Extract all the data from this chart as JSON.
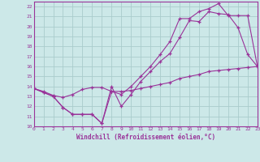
{
  "xlabel": "Windchill (Refroidissement éolien,°C)",
  "xlim": [
    0,
    23
  ],
  "ylim": [
    10,
    22.5
  ],
  "yticks": [
    10,
    11,
    12,
    13,
    14,
    15,
    16,
    17,
    18,
    19,
    20,
    21,
    22
  ],
  "xticks": [
    0,
    1,
    2,
    3,
    4,
    5,
    6,
    7,
    8,
    9,
    10,
    11,
    12,
    13,
    14,
    15,
    16,
    17,
    18,
    19,
    20,
    21,
    22,
    23
  ],
  "bg_color": "#cce8e8",
  "grid_color": "#aacccc",
  "line_color": "#993399",
  "line1_x": [
    0,
    1,
    2,
    3,
    4,
    5,
    6,
    7,
    8,
    9,
    10,
    11,
    12,
    13,
    14,
    15,
    16,
    17,
    18,
    19,
    20,
    21,
    22,
    23
  ],
  "line1_y": [
    13.8,
    13.4,
    13.0,
    11.9,
    11.2,
    11.2,
    11.2,
    10.3,
    14.0,
    12.0,
    13.2,
    14.5,
    15.5,
    16.5,
    17.3,
    18.9,
    20.6,
    20.5,
    21.5,
    21.3,
    21.2,
    19.9,
    17.2,
    16.0
  ],
  "line2_x": [
    0,
    1,
    2,
    3,
    4,
    5,
    6,
    7,
    8,
    9,
    10,
    11,
    12,
    13,
    14,
    15,
    16,
    17,
    18,
    19,
    20,
    21,
    22,
    23
  ],
  "line2_y": [
    13.8,
    13.4,
    13.0,
    11.9,
    11.2,
    11.2,
    11.2,
    10.3,
    13.5,
    13.2,
    14.0,
    15.0,
    16.0,
    17.2,
    18.5,
    20.8,
    20.8,
    21.5,
    21.8,
    22.3,
    21.1,
    21.1,
    21.1,
    16.0
  ],
  "line3_x": [
    0,
    1,
    2,
    3,
    4,
    5,
    6,
    7,
    8,
    9,
    10,
    11,
    12,
    13,
    14,
    15,
    16,
    17,
    18,
    19,
    20,
    21,
    22,
    23
  ],
  "line3_y": [
    13.8,
    13.5,
    13.1,
    12.9,
    13.2,
    13.7,
    13.9,
    13.9,
    13.5,
    13.5,
    13.6,
    13.8,
    14.0,
    14.2,
    14.4,
    14.8,
    15.0,
    15.2,
    15.5,
    15.6,
    15.7,
    15.8,
    15.9,
    16.0
  ]
}
